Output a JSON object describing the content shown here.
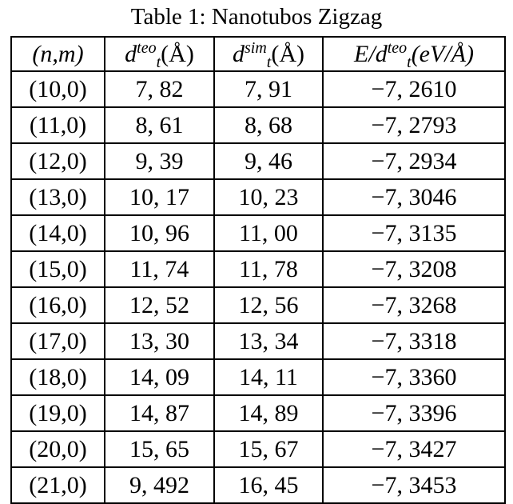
{
  "caption": "Table 1: Nanotubos Zigzag",
  "headers": {
    "c0": "(n,m)",
    "c1": {
      "main": "d",
      "sup": "teo",
      "sub": "t",
      "unit": "(Å)"
    },
    "c2": {
      "main": "d",
      "sup": "sim",
      "sub": "t",
      "unit": "(Å)"
    },
    "c3": {
      "pre": "E/",
      "main": "d",
      "sup": "teo",
      "sub": "t",
      "unit": "(eV/Å)"
    }
  },
  "rows": [
    [
      "(10,0)",
      "7, 82",
      "7, 91",
      "−7, 2610"
    ],
    [
      "(11,0)",
      "8, 61",
      "8, 68",
      "−7, 2793"
    ],
    [
      "(12,0)",
      "9, 39",
      "9, 46",
      "−7, 2934"
    ],
    [
      "(13,0)",
      "10, 17",
      "10, 23",
      "−7, 3046"
    ],
    [
      "(14,0)",
      "10, 96",
      "11, 00",
      "−7, 3135"
    ],
    [
      "(15,0)",
      "11, 74",
      "11, 78",
      "−7, 3208"
    ],
    [
      "(16,0)",
      "12, 52",
      "12, 56",
      "−7, 3268"
    ],
    [
      "(17,0)",
      "13, 30",
      "13, 34",
      "−7, 3318"
    ],
    [
      "(18,0)",
      "14, 09",
      "14, 11",
      "−7, 3360"
    ],
    [
      "(19,0)",
      "14, 87",
      "14, 89",
      "−7, 3396"
    ],
    [
      "(20,0)",
      "15, 65",
      "15, 67",
      "−7, 3427"
    ],
    [
      "(21,0)",
      "9, 492",
      "16, 45",
      "−7, 3453"
    ]
  ]
}
